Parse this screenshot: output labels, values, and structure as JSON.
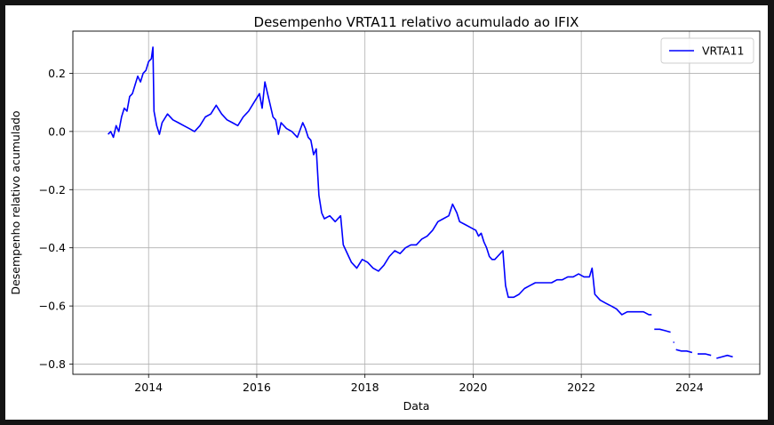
{
  "chart_data": {
    "type": "line",
    "title": "Desempenho VRTA11 relativo acumulado ao IFIX",
    "xlabel": "Data",
    "ylabel": "Desempenho relativo acumulado",
    "xlim": [
      2012.6,
      2025.3
    ],
    "ylim": [
      -0.835,
      0.345
    ],
    "xticks": [
      2014,
      2016,
      2018,
      2020,
      2022,
      2024
    ],
    "xtick_labels": [
      "2014",
      "2016",
      "2018",
      "2020",
      "2022",
      "2024"
    ],
    "yticks": [
      -0.8,
      -0.6,
      -0.4,
      -0.2,
      0.0,
      0.2
    ],
    "ytick_labels": [
      "−0.8",
      "−0.6",
      "−0.4",
      "−0.2",
      "0.0",
      "0.2"
    ],
    "grid": true,
    "legend_position": "top-right",
    "series": [
      {
        "name": "VRTA11",
        "color": "#0000ff",
        "segments": [
          [
            [
              2013.25,
              -0.01
            ],
            [
              2013.3,
              0.0
            ],
            [
              2013.35,
              -0.02
            ],
            [
              2013.4,
              0.02
            ],
            [
              2013.45,
              0.0
            ],
            [
              2013.5,
              0.05
            ],
            [
              2013.55,
              0.08
            ],
            [
              2013.6,
              0.07
            ],
            [
              2013.65,
              0.12
            ],
            [
              2013.7,
              0.13
            ],
            [
              2013.75,
              0.16
            ],
            [
              2013.8,
              0.19
            ],
            [
              2013.85,
              0.17
            ],
            [
              2013.9,
              0.2
            ],
            [
              2013.95,
              0.21
            ],
            [
              2014.0,
              0.24
            ],
            [
              2014.05,
              0.25
            ],
            [
              2014.08,
              0.29
            ],
            [
              2014.1,
              0.07
            ],
            [
              2014.15,
              0.02
            ],
            [
              2014.2,
              -0.01
            ],
            [
              2014.25,
              0.03
            ],
            [
              2014.35,
              0.06
            ],
            [
              2014.45,
              0.04
            ],
            [
              2014.55,
              0.03
            ],
            [
              2014.65,
              0.02
            ],
            [
              2014.75,
              0.01
            ],
            [
              2014.85,
              0.0
            ],
            [
              2014.95,
              0.02
            ],
            [
              2015.05,
              0.05
            ],
            [
              2015.15,
              0.06
            ],
            [
              2015.25,
              0.09
            ],
            [
              2015.35,
              0.06
            ],
            [
              2015.45,
              0.04
            ],
            [
              2015.55,
              0.03
            ],
            [
              2015.65,
              0.02
            ],
            [
              2015.75,
              0.05
            ],
            [
              2015.85,
              0.07
            ],
            [
              2015.95,
              0.1
            ],
            [
              2016.05,
              0.13
            ],
            [
              2016.1,
              0.08
            ],
            [
              2016.15,
              0.17
            ],
            [
              2016.2,
              0.13
            ],
            [
              2016.25,
              0.09
            ],
            [
              2016.3,
              0.05
            ],
            [
              2016.35,
              0.04
            ],
            [
              2016.4,
              -0.01
            ],
            [
              2016.45,
              0.03
            ],
            [
              2016.55,
              0.01
            ],
            [
              2016.65,
              0.0
            ],
            [
              2016.75,
              -0.02
            ],
            [
              2016.85,
              0.03
            ],
            [
              2016.9,
              0.01
            ],
            [
              2016.95,
              -0.02
            ],
            [
              2017.0,
              -0.03
            ],
            [
              2017.05,
              -0.08
            ],
            [
              2017.1,
              -0.06
            ],
            [
              2017.15,
              -0.22
            ],
            [
              2017.2,
              -0.28
            ],
            [
              2017.25,
              -0.3
            ],
            [
              2017.35,
              -0.29
            ],
            [
              2017.45,
              -0.31
            ],
            [
              2017.55,
              -0.29
            ],
            [
              2017.6,
              -0.39
            ],
            [
              2017.65,
              -0.41
            ],
            [
              2017.7,
              -0.43
            ],
            [
              2017.75,
              -0.45
            ],
            [
              2017.8,
              -0.46
            ],
            [
              2017.85,
              -0.47
            ],
            [
              2017.95,
              -0.44
            ],
            [
              2018.05,
              -0.45
            ],
            [
              2018.15,
              -0.47
            ],
            [
              2018.25,
              -0.48
            ],
            [
              2018.35,
              -0.46
            ],
            [
              2018.45,
              -0.43
            ],
            [
              2018.55,
              -0.41
            ],
            [
              2018.65,
              -0.42
            ],
            [
              2018.75,
              -0.4
            ],
            [
              2018.85,
              -0.39
            ],
            [
              2018.95,
              -0.39
            ],
            [
              2019.05,
              -0.37
            ],
            [
              2019.15,
              -0.36
            ],
            [
              2019.25,
              -0.34
            ],
            [
              2019.35,
              -0.31
            ],
            [
              2019.45,
              -0.3
            ],
            [
              2019.55,
              -0.29
            ],
            [
              2019.62,
              -0.25
            ],
            [
              2019.7,
              -0.28
            ],
            [
              2019.75,
              -0.31
            ],
            [
              2019.85,
              -0.32
            ],
            [
              2019.95,
              -0.33
            ],
            [
              2020.05,
              -0.34
            ],
            [
              2020.1,
              -0.36
            ],
            [
              2020.15,
              -0.35
            ],
            [
              2020.2,
              -0.38
            ],
            [
              2020.25,
              -0.4
            ],
            [
              2020.3,
              -0.43
            ],
            [
              2020.35,
              -0.44
            ],
            [
              2020.4,
              -0.44
            ],
            [
              2020.55,
              -0.41
            ],
            [
              2020.6,
              -0.53
            ],
            [
              2020.65,
              -0.57
            ],
            [
              2020.75,
              -0.57
            ],
            [
              2020.85,
              -0.56
            ],
            [
              2020.95,
              -0.54
            ],
            [
              2021.05,
              -0.53
            ],
            [
              2021.15,
              -0.52
            ],
            [
              2021.25,
              -0.52
            ],
            [
              2021.35,
              -0.52
            ],
            [
              2021.45,
              -0.52
            ],
            [
              2021.55,
              -0.51
            ],
            [
              2021.65,
              -0.51
            ],
            [
              2021.75,
              -0.5
            ],
            [
              2021.85,
              -0.5
            ],
            [
              2021.95,
              -0.49
            ],
            [
              2022.05,
              -0.5
            ],
            [
              2022.15,
              -0.5
            ],
            [
              2022.2,
              -0.47
            ],
            [
              2022.25,
              -0.56
            ],
            [
              2022.35,
              -0.58
            ],
            [
              2022.45,
              -0.59
            ],
            [
              2022.55,
              -0.6
            ],
            [
              2022.65,
              -0.61
            ],
            [
              2022.75,
              -0.63
            ],
            [
              2022.85,
              -0.62
            ],
            [
              2022.95,
              -0.62
            ],
            [
              2023.05,
              -0.62
            ],
            [
              2023.15,
              -0.62
            ],
            [
              2023.25,
              -0.63
            ],
            [
              2023.3,
              -0.63
            ]
          ],
          [
            [
              2023.35,
              -0.68
            ],
            [
              2023.45,
              -0.68
            ],
            [
              2023.55,
              -0.685
            ],
            [
              2023.65,
              -0.69
            ]
          ],
          [
            [
              2023.7,
              -0.725
            ],
            [
              2023.72,
              -0.725
            ]
          ],
          [
            [
              2023.75,
              -0.75
            ],
            [
              2023.85,
              -0.755
            ],
            [
              2023.95,
              -0.755
            ],
            [
              2024.05,
              -0.76
            ]
          ],
          [
            [
              2024.15,
              -0.765
            ],
            [
              2024.3,
              -0.765
            ],
            [
              2024.4,
              -0.77
            ]
          ],
          [
            [
              2024.5,
              -0.78
            ],
            [
              2024.6,
              -0.775
            ],
            [
              2024.7,
              -0.77
            ],
            [
              2024.8,
              -0.775
            ]
          ]
        ]
      }
    ]
  }
}
